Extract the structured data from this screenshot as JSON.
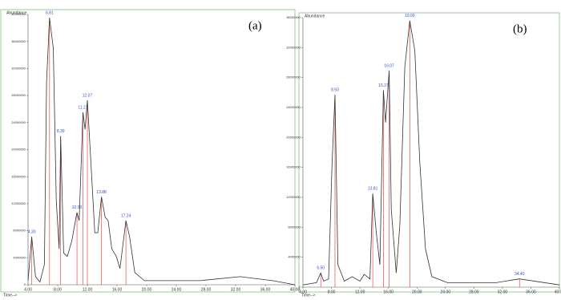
{
  "chart_data": [
    {
      "type": "line",
      "panel_label": "(a)",
      "ylabel": "Abundance",
      "xlabel": "Time-->",
      "color": "#333333",
      "marker_color": "#e03030",
      "label_color": "#3050d0",
      "x": [
        4,
        4.5,
        5.0,
        5.6,
        6.2,
        6.5,
        6.9,
        7.4,
        7.8,
        8.2,
        8.4,
        8.8,
        9.3,
        9.9,
        10.6,
        10.9,
        11.4,
        11.7,
        12.0,
        12.4,
        13.0,
        13.4,
        13.9,
        14.4,
        14.8,
        15.3,
        15.9,
        16.4,
        17.2,
        17.7,
        18.4,
        19.7,
        27.2,
        32.6,
        37,
        40
      ],
      "values": [
        600000,
        7100000,
        1200000,
        400000,
        3000000,
        30000000,
        39500000,
        35000000,
        12500000,
        5300000,
        22000000,
        4700000,
        4200000,
        6500000,
        10700000,
        9500000,
        25500000,
        23000000,
        27300000,
        19600000,
        7700000,
        7700000,
        13000000,
        10000000,
        9500000,
        5300000,
        4200000,
        2400000,
        9500000,
        7100000,
        1800000,
        600000,
        600000,
        1200000,
        600000,
        0
      ],
      "peaks": [
        {
          "label": "4.30",
          "x": 4.5,
          "y": 7100000
        },
        {
          "label": "6.81",
          "x": 6.9,
          "y": 39500000
        },
        {
          "label": "8.39",
          "x": 8.4,
          "y": 22000000
        },
        {
          "label": "10.50",
          "x": 10.6,
          "y": 10700000
        },
        {
          "label": "11.27",
          "x": 11.4,
          "y": 25500000
        },
        {
          "label": "12.07",
          "x": 12.0,
          "y": 27300000
        },
        {
          "label": "13.88",
          "x": 13.9,
          "y": 13000000
        },
        {
          "label": "17.24",
          "x": 17.2,
          "y": 9500000
        }
      ],
      "xlim": [
        4,
        40
      ],
      "ylim": [
        0,
        40000000
      ],
      "xticks": [
        {
          "value": 4,
          "label": "4.00"
        },
        {
          "value": 8,
          "label": "8.00"
        },
        {
          "value": 12,
          "label": "12.00"
        },
        {
          "value": 16,
          "label": "16.00"
        },
        {
          "value": 20,
          "label": "20.00"
        },
        {
          "value": 24,
          "label": "24.00"
        },
        {
          "value": 28,
          "label": "28.00"
        },
        {
          "value": 32,
          "label": "32.00"
        },
        {
          "value": 36,
          "label": "36.00"
        },
        {
          "value": 40,
          "label": "40.00"
        }
      ],
      "yticks": [
        0,
        4000000,
        8000000,
        12000000,
        16000000,
        20000000,
        24000000,
        28000000,
        32000000,
        36000000,
        40000000
      ]
    },
    {
      "type": "line",
      "panel_label": "(b)",
      "ylabel": "Abundance",
      "xlabel": "Time-->",
      "color": "#333333",
      "marker_color": "#e03030",
      "label_color": "#3050d0",
      "x": [
        4,
        5.9,
        6.5,
        6.9,
        7.6,
        8.1,
        8.5,
        8.9,
        9.8,
        10.9,
        12.0,
        12.6,
        13.4,
        13.8,
        14.3,
        14.8,
        15.3,
        15.6,
        16.1,
        16.4,
        17.1,
        17.6,
        18.3,
        19.0,
        19.7,
        20.4,
        21.2,
        22.1,
        24.3,
        31.1,
        34.4,
        40
      ],
      "values": [
        300000,
        600000,
        1900000,
        800000,
        1100000,
        16700000,
        25700000,
        3000000,
        800000,
        1400000,
        800000,
        1700000,
        1100000,
        12500000,
        7200000,
        3000000,
        26300000,
        22000000,
        28900000,
        10400000,
        1900000,
        8300000,
        29400000,
        35600000,
        31600000,
        16700000,
        5100000,
        1400000,
        600000,
        600000,
        1100000,
        300000
      ],
      "peaks": [
        {
          "label": "6.50",
          "x": 6.5,
          "y": 1900000
        },
        {
          "label": "8.50",
          "x": 8.5,
          "y": 25700000
        },
        {
          "label": "13.81",
          "x": 13.8,
          "y": 12500000
        },
        {
          "label": "15.27",
          "x": 15.3,
          "y": 26300000
        },
        {
          "label": "16.07",
          "x": 16.1,
          "y": 28900000
        },
        {
          "label": "19.00",
          "x": 19.0,
          "y": 35600000
        },
        {
          "label": "34.40",
          "x": 34.4,
          "y": 1100000
        }
      ],
      "xlim": [
        4,
        40
      ],
      "ylim": [
        0,
        36000000
      ],
      "xticks": [
        {
          "value": 4,
          "label": "4.00"
        },
        {
          "value": 8,
          "label": "8.00"
        },
        {
          "value": 12,
          "label": "12.00"
        },
        {
          "value": 16,
          "label": "16.00"
        },
        {
          "value": 20,
          "label": "20.00"
        },
        {
          "value": 24,
          "label": "24.00"
        },
        {
          "value": 28,
          "label": "28.00"
        },
        {
          "value": 32,
          "label": "32.00"
        },
        {
          "value": 36,
          "label": "36.00"
        },
        {
          "value": 40,
          "label": "40.00"
        }
      ],
      "yticks": [
        0,
        4000000,
        8000000,
        12000000,
        16000000,
        20000000,
        24000000,
        28000000,
        32000000,
        36000000
      ]
    }
  ]
}
